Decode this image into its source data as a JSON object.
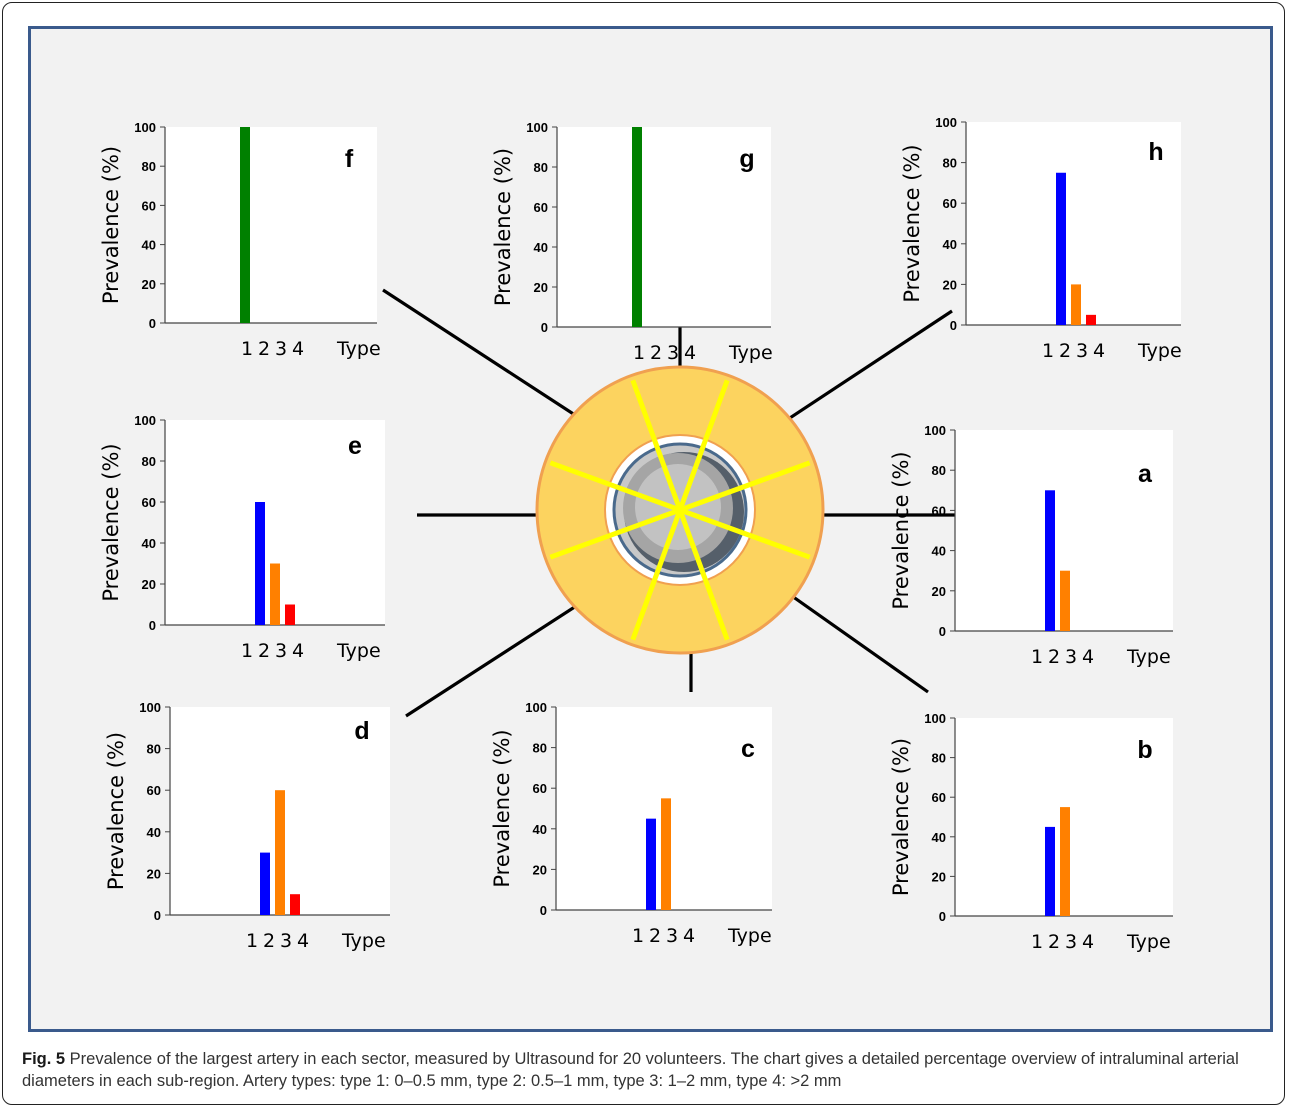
{
  "caption": {
    "label": "Fig. 5",
    "text": " Prevalence of the largest artery in each sector, measured by Ultrasound for 20 volunteers. The chart gives a detailed percentage overview of intraluminal arterial diameters in each sub-region. Artery types: type 1: 0–0.5 mm, type 2: 0.5–1 mm, type 3: 1–2 mm, type 4: >2 mm"
  },
  "colors": {
    "type1": "#008000",
    "type2": "#0000ff",
    "type3": "#ff8000",
    "type4": "#ff0000",
    "ring_fill": "#fcd35f",
    "ring_stroke": "#f0a050",
    "spokes": "#ffff00"
  },
  "chart_data": [
    {
      "panel": "f",
      "type": "bar",
      "categories": [
        "1",
        "2",
        "3",
        "4"
      ],
      "values": [
        100,
        0,
        0,
        0
      ],
      "ylabel": "Prevalence (%)",
      "xlabel": "Type",
      "ylim": [
        0,
        100
      ],
      "yticks": [
        0,
        20,
        40,
        60,
        80,
        100
      ]
    },
    {
      "panel": "g",
      "type": "bar",
      "categories": [
        "1",
        "2",
        "3",
        "4"
      ],
      "values": [
        100,
        0,
        0,
        0
      ],
      "ylabel": "Prevalence (%)",
      "xlabel": "Type",
      "ylim": [
        0,
        100
      ],
      "yticks": [
        0,
        20,
        40,
        60,
        80,
        100
      ]
    },
    {
      "panel": "h",
      "type": "bar",
      "categories": [
        "1",
        "2",
        "3",
        "4"
      ],
      "values": [
        0,
        75,
        20,
        5
      ],
      "ylabel": "Prevalence (%)",
      "xlabel": "Type",
      "ylim": [
        0,
        100
      ],
      "yticks": [
        0,
        20,
        40,
        60,
        80,
        100
      ]
    },
    {
      "panel": "e",
      "type": "bar",
      "categories": [
        "1",
        "2",
        "3",
        "4"
      ],
      "values": [
        0,
        60,
        30,
        10
      ],
      "ylabel": "Prevalence (%)",
      "xlabel": "Type",
      "ylim": [
        0,
        100
      ],
      "yticks": [
        0,
        20,
        40,
        60,
        80,
        100
      ]
    },
    {
      "panel": "a",
      "type": "bar",
      "categories": [
        "1",
        "2",
        "3",
        "4"
      ],
      "values": [
        0,
        70,
        30,
        0
      ],
      "ylabel": "Prevalence (%)",
      "xlabel": "Type",
      "ylim": [
        0,
        100
      ],
      "yticks": [
        0,
        20,
        40,
        60,
        80,
        100
      ]
    },
    {
      "panel": "d",
      "type": "bar",
      "categories": [
        "1",
        "2",
        "3",
        "4"
      ],
      "values": [
        0,
        30,
        60,
        10
      ],
      "ylabel": "Prevalence (%)",
      "xlabel": "Type",
      "ylim": [
        0,
        100
      ],
      "yticks": [
        0,
        20,
        40,
        60,
        80,
        100
      ]
    },
    {
      "panel": "c",
      "type": "bar",
      "categories": [
        "1",
        "2",
        "3",
        "4"
      ],
      "values": [
        0,
        45,
        55,
        0
      ],
      "ylabel": "Prevalence (%)",
      "xlabel": "Type",
      "ylim": [
        0,
        100
      ],
      "yticks": [
        0,
        20,
        40,
        60,
        80,
        100
      ]
    },
    {
      "panel": "b",
      "type": "bar",
      "categories": [
        "1",
        "2",
        "3",
        "4"
      ],
      "values": [
        0,
        45,
        55,
        0
      ],
      "ylabel": "Prevalence (%)",
      "xlabel": "Type",
      "ylim": [
        0,
        100
      ],
      "yticks": [
        0,
        20,
        40,
        60,
        80,
        100
      ]
    }
  ]
}
